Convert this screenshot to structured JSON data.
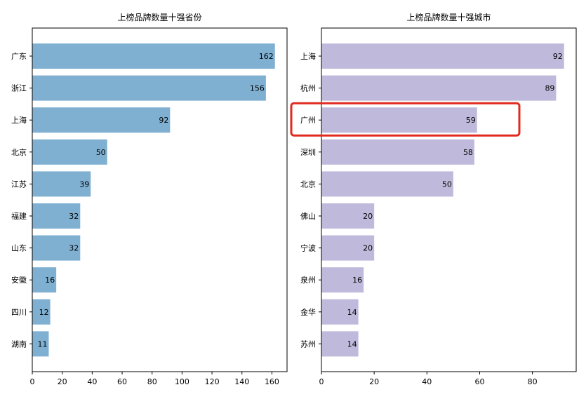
{
  "chart_data": [
    {
      "type": "bar",
      "orientation": "horizontal",
      "title": "上榜品牌数量十强省份",
      "categories": [
        "广东",
        "浙江",
        "上海",
        "北京",
        "江苏",
        "福建",
        "山东",
        "安徽",
        "四川",
        "湖南"
      ],
      "values": [
        162,
        156,
        92,
        50,
        39,
        32,
        32,
        16,
        12,
        11
      ],
      "data_labels": [
        "162",
        "156",
        "92",
        "50",
        "39",
        "32",
        "32",
        "16",
        "12",
        "11"
      ],
      "xticks": [
        0,
        20,
        40,
        60,
        80,
        100,
        120,
        140,
        160
      ],
      "xlim": [
        0,
        170.1
      ],
      "color": "#7fb0d2",
      "grid": false
    },
    {
      "type": "bar",
      "orientation": "horizontal",
      "title": "上榜品牌数量十强城市",
      "categories": [
        "上海",
        "杭州",
        "广州",
        "深圳",
        "北京",
        "佛山",
        "宁波",
        "泉州",
        "金华",
        "苏州"
      ],
      "values": [
        92,
        89,
        59,
        58,
        50,
        20,
        20,
        16,
        14,
        14
      ],
      "data_labels": [
        "92",
        "89",
        "59",
        "58",
        "50",
        "20",
        "20",
        "16",
        "14",
        "14"
      ],
      "xticks": [
        0,
        20,
        40,
        60,
        80
      ],
      "xlim": [
        0,
        96.6
      ],
      "color": "#bfbadb",
      "grid": false,
      "highlighted_category": "广州",
      "highlight_color": "#e02a1f"
    }
  ]
}
